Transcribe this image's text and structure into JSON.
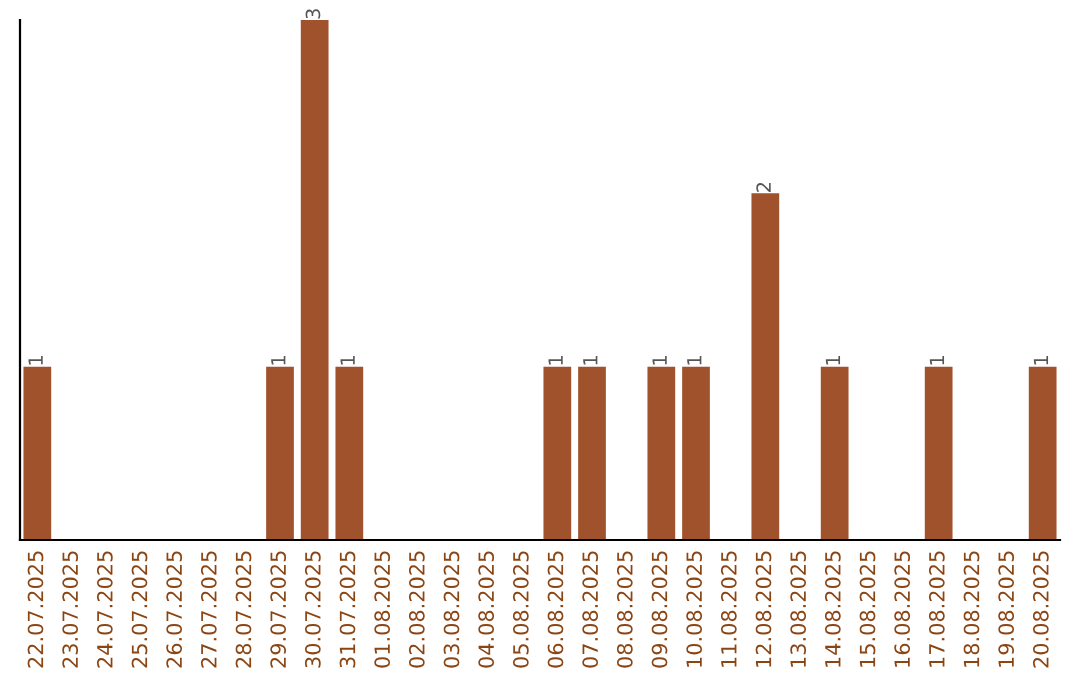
{
  "chart_data": {
    "type": "bar",
    "categories": [
      "22.07.2025",
      "23.07.2025",
      "24.07.2025",
      "25.07.2025",
      "26.07.2025",
      "27.07.2025",
      "28.07.2025",
      "29.07.2025",
      "30.07.2025",
      "31.07.2025",
      "01.08.2025",
      "02.08.2025",
      "03.08.2025",
      "04.08.2025",
      "05.08.2025",
      "06.08.2025",
      "07.08.2025",
      "08.08.2025",
      "09.08.2025",
      "10.08.2025",
      "11.08.2025",
      "12.08.2025",
      "13.08.2025",
      "14.08.2025",
      "15.08.2025",
      "16.08.2025",
      "17.08.2025",
      "18.08.2025",
      "19.08.2025",
      "20.08.2025"
    ],
    "values": [
      1,
      0,
      0,
      0,
      0,
      0,
      0,
      1,
      3,
      1,
      0,
      0,
      0,
      0,
      0,
      1,
      1,
      0,
      1,
      1,
      0,
      2,
      0,
      1,
      0,
      0,
      1,
      0,
      0,
      1
    ],
    "value_labels": [
      "1",
      null,
      null,
      null,
      null,
      null,
      null,
      "1",
      "3",
      "1",
      null,
      null,
      null,
      null,
      null,
      "1",
      "1",
      null,
      "1",
      "1",
      null,
      "2",
      null,
      "1",
      null,
      null,
      "1",
      null,
      null,
      "1"
    ],
    "color": "#a0522d",
    "ylim": [
      0,
      3
    ],
    "tick_labels": "x",
    "grid": false,
    "legend": false
  }
}
